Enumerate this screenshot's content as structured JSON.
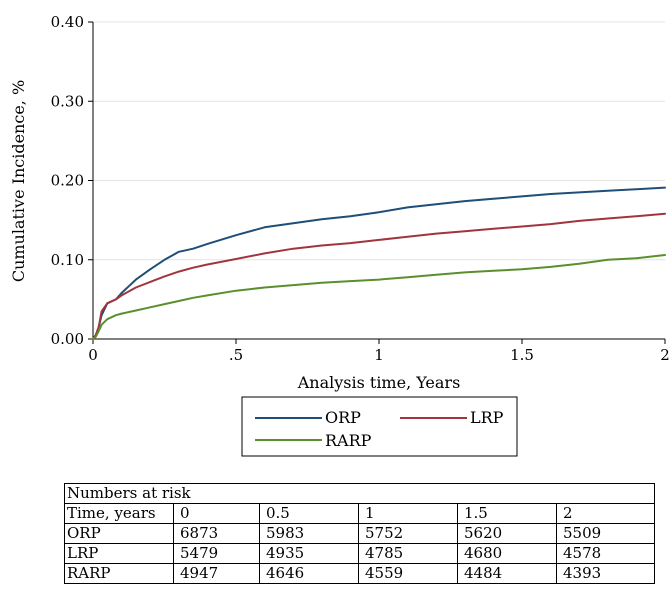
{
  "chart_data": {
    "type": "line",
    "xlabel": "Analysis time, Years",
    "ylabel": "Cumulative Incidence, %",
    "xlim": [
      0,
      2
    ],
    "ylim": [
      0,
      0.4
    ],
    "x_ticks": [
      0,
      0.5,
      1,
      1.5,
      2
    ],
    "x_tick_labels": [
      "0",
      ".5",
      "1",
      "1.5",
      "2"
    ],
    "y_ticks": [
      0,
      0.1,
      0.2,
      0.3,
      0.4
    ],
    "y_tick_labels": [
      "0.00",
      "0.10",
      "0.20",
      "0.30",
      "0.40"
    ],
    "grid": "horizontal",
    "legend_position": "bottom",
    "series": [
      {
        "name": "ORP",
        "color": "#1f4e79",
        "x": [
          0.0,
          0.01,
          0.02,
          0.03,
          0.05,
          0.08,
          0.1,
          0.15,
          0.2,
          0.25,
          0.3,
          0.35,
          0.4,
          0.5,
          0.6,
          0.7,
          0.8,
          0.9,
          1.0,
          1.1,
          1.2,
          1.3,
          1.4,
          1.5,
          1.6,
          1.7,
          1.8,
          1.9,
          2.0
        ],
        "y": [
          0.0,
          0.005,
          0.015,
          0.03,
          0.045,
          0.05,
          0.058,
          0.075,
          0.088,
          0.1,
          0.11,
          0.114,
          0.12,
          0.131,
          0.141,
          0.146,
          0.151,
          0.155,
          0.16,
          0.166,
          0.17,
          0.174,
          0.177,
          0.18,
          0.183,
          0.185,
          0.187,
          0.189,
          0.191
        ]
      },
      {
        "name": "LRP",
        "color": "#a0353e",
        "x": [
          0.0,
          0.01,
          0.02,
          0.03,
          0.05,
          0.08,
          0.1,
          0.15,
          0.2,
          0.25,
          0.3,
          0.35,
          0.4,
          0.5,
          0.6,
          0.7,
          0.8,
          0.9,
          1.0,
          1.1,
          1.2,
          1.3,
          1.4,
          1.5,
          1.6,
          1.7,
          1.8,
          1.9,
          2.0
        ],
        "y": [
          0.0,
          0.005,
          0.015,
          0.035,
          0.045,
          0.05,
          0.055,
          0.065,
          0.072,
          0.079,
          0.085,
          0.09,
          0.094,
          0.101,
          0.108,
          0.114,
          0.118,
          0.121,
          0.125,
          0.129,
          0.133,
          0.136,
          0.139,
          0.142,
          0.145,
          0.149,
          0.152,
          0.155,
          0.158
        ]
      },
      {
        "name": "RARP",
        "color": "#5b8f2e",
        "x": [
          0.0,
          0.01,
          0.02,
          0.03,
          0.05,
          0.08,
          0.1,
          0.15,
          0.2,
          0.25,
          0.3,
          0.35,
          0.4,
          0.5,
          0.6,
          0.7,
          0.8,
          0.9,
          1.0,
          1.1,
          1.2,
          1.3,
          1.4,
          1.5,
          1.6,
          1.7,
          1.8,
          1.9,
          2.0
        ],
        "y": [
          0.0,
          0.003,
          0.01,
          0.018,
          0.025,
          0.03,
          0.032,
          0.036,
          0.04,
          0.044,
          0.048,
          0.052,
          0.055,
          0.061,
          0.065,
          0.068,
          0.071,
          0.073,
          0.075,
          0.078,
          0.081,
          0.084,
          0.086,
          0.088,
          0.091,
          0.095,
          0.1,
          0.102,
          0.106
        ]
      }
    ]
  },
  "risk_table": {
    "title": "Numbers at risk",
    "header": [
      "Time, years",
      "0",
      "0.5",
      "1",
      "1.5",
      "2"
    ],
    "rows": [
      [
        "ORP",
        "6873",
        "5983",
        "5752",
        "5620",
        "5509"
      ],
      [
        "LRP",
        "5479",
        "4935",
        "4785",
        "4680",
        "4578"
      ],
      [
        "RARP",
        "4947",
        "4646",
        "4559",
        "4484",
        "4393"
      ]
    ]
  }
}
